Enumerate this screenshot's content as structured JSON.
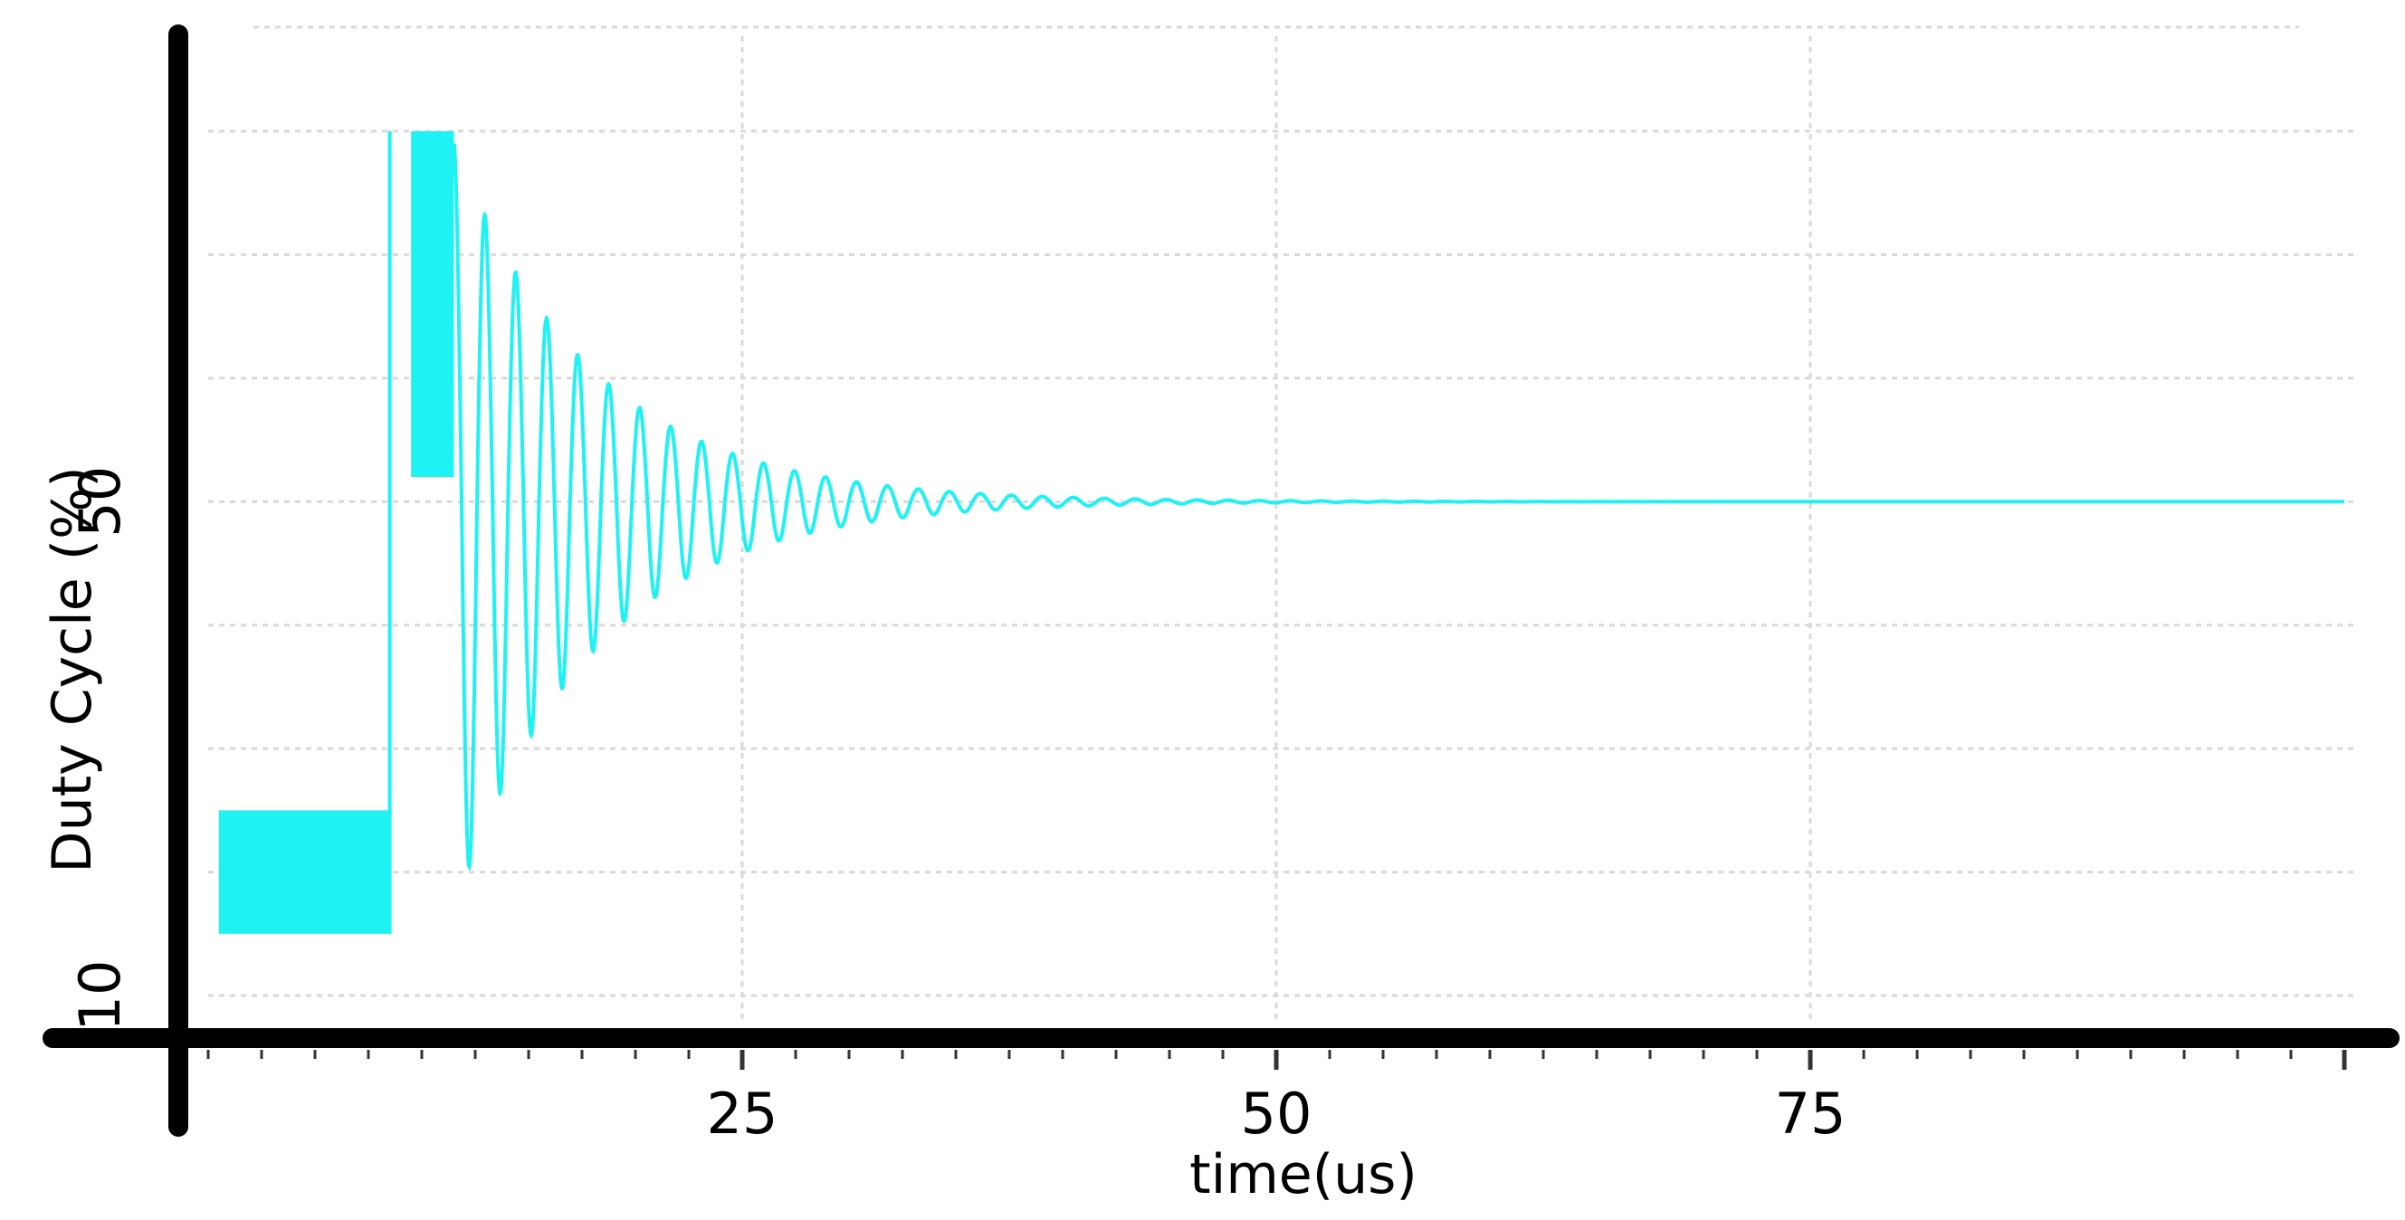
{
  "chart_data": {
    "type": "line",
    "title": "",
    "xlabel": "time(us)",
    "ylabel": "Duty Cycle (%)",
    "xlim": [
      0,
      100
    ],
    "ylim": [
      10,
      90
    ],
    "grid": true,
    "x_ticks_labeled": [
      25,
      50,
      75
    ],
    "x_tick_labels": [
      "25",
      "50",
      "75"
    ],
    "y_ticks_labeled": [
      10,
      50
    ],
    "y_tick_labels": [
      "10",
      "50"
    ],
    "y_gridlines": [
      10,
      20,
      30,
      40,
      50,
      60,
      70,
      80
    ],
    "x_gridlines": [
      25,
      50,
      75
    ],
    "series": [
      {
        "color": "#1ff2f2",
        "description_points": {
          "initial_band": {
            "x_start": 0.5,
            "x_end": 8.5,
            "y_low": 15,
            "y_high": 25
          },
          "step_time": 8.5,
          "saturated_band": {
            "x_start": 9.5,
            "x_end": 11.5,
            "y_low": 52,
            "y_high": 80
          },
          "settle_value": 50,
          "first_peak": 79,
          "first_trough": 17,
          "period": 1.45,
          "decay_tau": 6.5,
          "settled_by": 48,
          "x_end": 100
        }
      }
    ],
    "colors": {
      "line": "#1ff2f2",
      "axis": "#000000",
      "grid": "#d9d9d9"
    }
  }
}
